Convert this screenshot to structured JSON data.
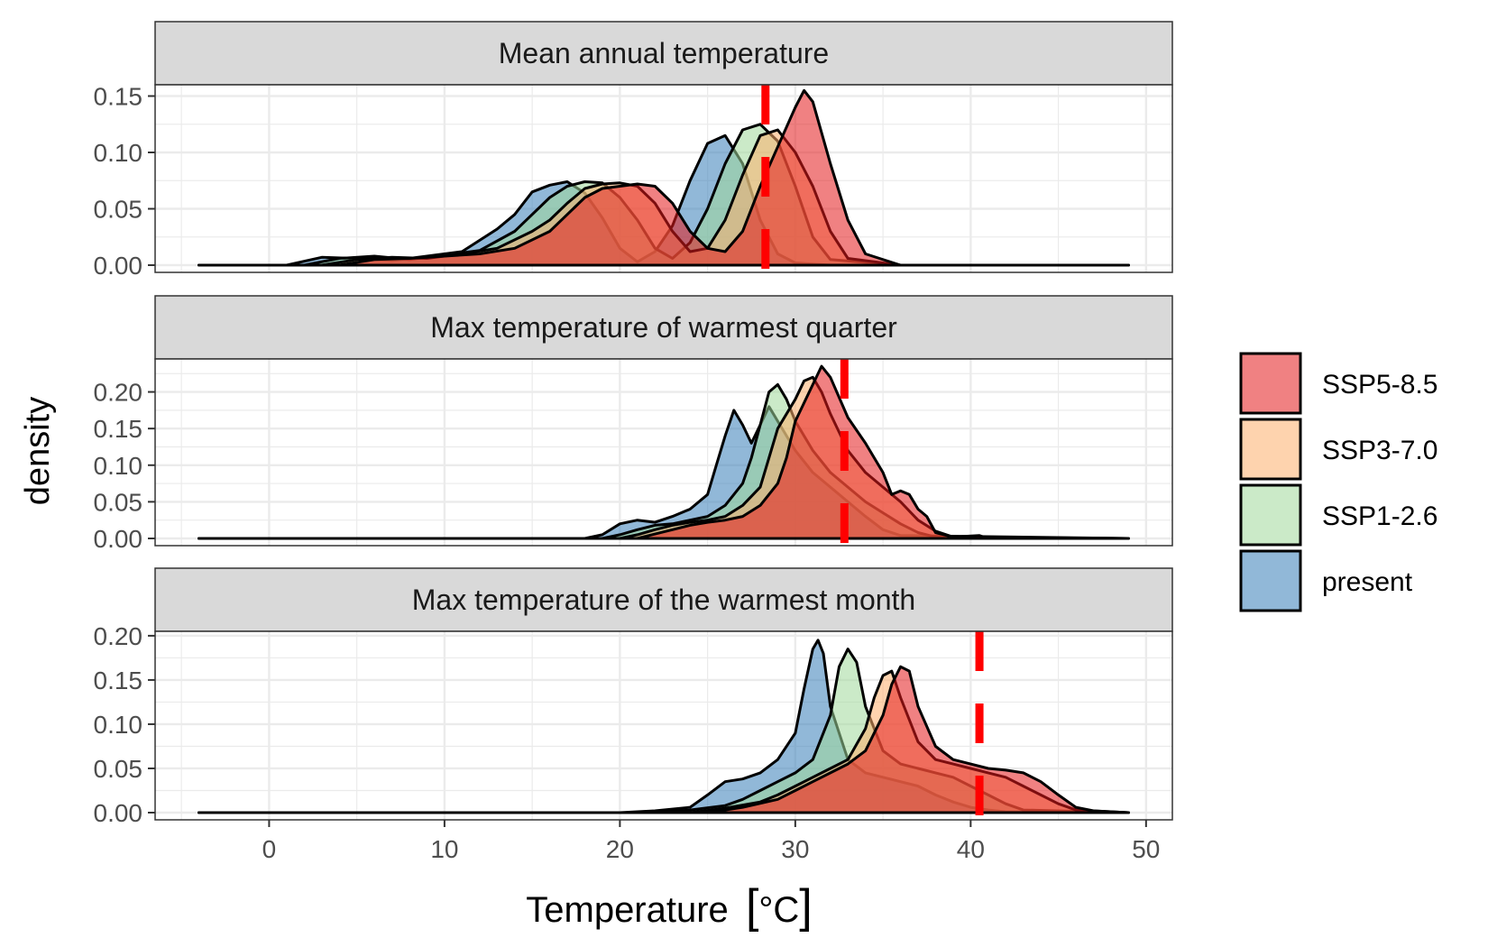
{
  "chart_data": {
    "type": "area",
    "subtype": "faceted density plot",
    "xlabel": "Temperature",
    "xunit": "°C",
    "ylabel": "density",
    "xlim": [
      -6.5,
      51.5
    ],
    "xticks": [
      0,
      10,
      20,
      30,
      40,
      50
    ],
    "grid": true,
    "legend_position": "right",
    "legend": [
      {
        "name": "SSP5-8.5",
        "color": "#E41A1C"
      },
      {
        "name": "SSP3-7.0",
        "color": "#FDAE6B"
      },
      {
        "name": "SSP1-2.6",
        "color": "#A1D99B"
      },
      {
        "name": "present",
        "color": "#377EB8"
      }
    ],
    "fill_opacity": 0.55,
    "threshold_line": {
      "style": "dashed",
      "color": "#FF0000"
    },
    "panels": [
      {
        "title": "Mean annual temperature",
        "ylim": [
          0,
          0.16
        ],
        "yticks": [
          "0.00",
          "0.05",
          "0.10",
          "0.15"
        ],
        "threshold": 28.3,
        "series": [
          {
            "name": "present",
            "x": [
              -4,
              1,
              3,
              5,
              7,
              9,
              11,
              13,
              14,
              15,
              16,
              17,
              18,
              19,
              20,
              21,
              22,
              23,
              24,
              25,
              26,
              27,
              28,
              29,
              30,
              32,
              36,
              49
            ],
            "y": [
              0,
              0,
              0.007,
              0.006,
              0.004,
              0.008,
              0.012,
              0.032,
              0.045,
              0.065,
              0.071,
              0.074,
              0.064,
              0.042,
              0.015,
              0.003,
              0.012,
              0.035,
              0.075,
              0.108,
              0.115,
              0.09,
              0.04,
              0.01,
              0.002,
              0,
              0,
              0
            ]
          },
          {
            "name": "SSP1-2.6",
            "x": [
              -4,
              2,
              4,
              6,
              8,
              10,
              12,
              14,
              15,
              16,
              17,
              18,
              19,
              20,
              21,
              22,
              23,
              24,
              25,
              26,
              27,
              28,
              29,
              30,
              31,
              32,
              36,
              49
            ],
            "y": [
              0,
              0,
              0.006,
              0.008,
              0.005,
              0.009,
              0.013,
              0.03,
              0.045,
              0.06,
              0.07,
              0.074,
              0.073,
              0.06,
              0.04,
              0.015,
              0.006,
              0.02,
              0.05,
              0.09,
              0.12,
              0.125,
              0.11,
              0.07,
              0.025,
              0.005,
              0,
              0
            ]
          },
          {
            "name": "SSP3-7.0",
            "x": [
              -4,
              3,
              5,
              7,
              9,
              11,
              13,
              15,
              16,
              17,
              18,
              19,
              20,
              21,
              22,
              23,
              24,
              25,
              26,
              27,
              28,
              29,
              30,
              31,
              32,
              33,
              36,
              49
            ],
            "y": [
              0,
              0,
              0.005,
              0.007,
              0.006,
              0.01,
              0.015,
              0.03,
              0.04,
              0.055,
              0.068,
              0.072,
              0.073,
              0.07,
              0.055,
              0.03,
              0.012,
              0.015,
              0.04,
              0.08,
              0.115,
              0.12,
              0.1,
              0.07,
              0.03,
              0.006,
              0,
              0
            ]
          },
          {
            "name": "SSP5-8.5",
            "x": [
              -4,
              4,
              6,
              8,
              10,
              12,
              14,
              16,
              17,
              18,
              19,
              20,
              21,
              22,
              23,
              24,
              25,
              26,
              27,
              28,
              29,
              30,
              30.5,
              31,
              32,
              33,
              34,
              36,
              49
            ],
            "y": [
              0,
              0,
              0.005,
              0.006,
              0.008,
              0.01,
              0.015,
              0.03,
              0.045,
              0.06,
              0.068,
              0.07,
              0.072,
              0.07,
              0.055,
              0.03,
              0.015,
              0.012,
              0.03,
              0.07,
              0.105,
              0.14,
              0.155,
              0.145,
              0.09,
              0.04,
              0.01,
              0,
              0
            ]
          }
        ]
      },
      {
        "title": "Max temperature of warmest quarter",
        "ylim": [
          0,
          0.245
        ],
        "yticks": [
          "0.00",
          "0.05",
          "0.10",
          "0.15",
          "0.20"
        ],
        "threshold": 32.8,
        "series": [
          {
            "name": "present",
            "x": [
              -4,
              18,
              19,
              20,
              21,
              22,
              23,
              24,
              25,
              25.5,
              26,
              26.5,
              27,
              27.5,
              28,
              28.5,
              29,
              30,
              31,
              32,
              33,
              34,
              35,
              36,
              49
            ],
            "y": [
              0,
              0,
              0.005,
              0.02,
              0.025,
              0.022,
              0.03,
              0.04,
              0.06,
              0.1,
              0.14,
              0.175,
              0.155,
              0.13,
              0.155,
              0.18,
              0.16,
              0.12,
              0.09,
              0.07,
              0.05,
              0.03,
              0.012,
              0.004,
              0
            ]
          },
          {
            "name": "SSP1-2.6",
            "x": [
              -4,
              19,
              20,
              21,
              22,
              23,
              24,
              25,
              26,
              27,
              27.5,
              28,
              28.5,
              29,
              29.5,
              30,
              31,
              32,
              33,
              34,
              35,
              36,
              37,
              38,
              49
            ],
            "y": [
              0,
              0,
              0.005,
              0.012,
              0.018,
              0.02,
              0.025,
              0.03,
              0.045,
              0.075,
              0.11,
              0.155,
              0.2,
              0.21,
              0.19,
              0.16,
              0.12,
              0.09,
              0.07,
              0.05,
              0.035,
              0.02,
              0.008,
              0.002,
              0
            ]
          },
          {
            "name": "SSP3-7.0",
            "x": [
              -4,
              20,
              21,
              22,
              23,
              24,
              25,
              26,
              27,
              28,
              28.5,
              29,
              30,
              30.5,
              31,
              31.5,
              32,
              33,
              34,
              35,
              36,
              37,
              38,
              39,
              49
            ],
            "y": [
              0,
              0,
              0.005,
              0.012,
              0.018,
              0.022,
              0.025,
              0.03,
              0.045,
              0.07,
              0.11,
              0.15,
              0.19,
              0.215,
              0.22,
              0.2,
              0.17,
              0.12,
              0.09,
              0.07,
              0.05,
              0.025,
              0.01,
              0.002,
              0
            ]
          },
          {
            "name": "SSP5-8.5",
            "x": [
              -4,
              21,
              22,
              23,
              24,
              25,
              26,
              27,
              28,
              29,
              29.5,
              30,
              31,
              31.5,
              32,
              33,
              34,
              35,
              35.5,
              36,
              36.5,
              37,
              37.5,
              38,
              39,
              40.5,
              41,
              49
            ],
            "y": [
              0,
              0,
              0.006,
              0.012,
              0.018,
              0.022,
              0.025,
              0.03,
              0.045,
              0.075,
              0.11,
              0.16,
              0.21,
              0.235,
              0.22,
              0.165,
              0.13,
              0.09,
              0.06,
              0.065,
              0.06,
              0.04,
              0.03,
              0.008,
              0.002,
              0.004,
              0,
              0
            ]
          }
        ]
      },
      {
        "title": "Max temperature of the warmest month",
        "ylim": [
          0,
          0.205
        ],
        "yticks": [
          "0.00",
          "0.05",
          "0.10",
          "0.15",
          "0.20"
        ],
        "threshold": 40.5,
        "series": [
          {
            "name": "present",
            "x": [
              -4,
              20,
              22,
              24,
              25,
              26,
              27,
              28,
              29,
              30,
              30.5,
              31,
              31.3,
              31.6,
              32,
              33,
              34,
              35,
              36,
              37,
              38,
              39,
              40,
              41,
              42,
              49
            ],
            "y": [
              0,
              0,
              0.002,
              0.006,
              0.02,
              0.035,
              0.038,
              0.045,
              0.06,
              0.09,
              0.14,
              0.185,
              0.195,
              0.18,
              0.12,
              0.06,
              0.045,
              0.04,
              0.035,
              0.03,
              0.02,
              0.012,
              0.006,
              0.003,
              0.001,
              0
            ]
          },
          {
            "name": "SSP1-2.6",
            "x": [
              -4,
              22,
              24,
              26,
              27,
              28,
              29,
              30,
              31,
              32,
              32.5,
              33,
              33.5,
              34,
              35,
              36,
              37,
              38,
              39,
              40,
              41,
              42,
              43,
              49
            ],
            "y": [
              0,
              0,
              0.003,
              0.008,
              0.015,
              0.025,
              0.035,
              0.045,
              0.06,
              0.11,
              0.165,
              0.185,
              0.17,
              0.12,
              0.07,
              0.055,
              0.05,
              0.045,
              0.04,
              0.03,
              0.02,
              0.01,
              0.003,
              0
            ]
          },
          {
            "name": "SSP3-7.0",
            "x": [
              -4,
              24,
              26,
              28,
              29,
              30,
              31,
              32,
              33,
              34,
              34.5,
              35,
              35.5,
              36,
              37,
              38,
              39,
              40,
              41,
              42,
              43,
              44,
              45,
              46,
              49
            ],
            "y": [
              0,
              0,
              0.005,
              0.012,
              0.02,
              0.03,
              0.04,
              0.05,
              0.06,
              0.095,
              0.13,
              0.155,
              0.16,
              0.13,
              0.08,
              0.06,
              0.055,
              0.05,
              0.045,
              0.04,
              0.03,
              0.02,
              0.01,
              0.003,
              0
            ]
          },
          {
            "name": "SSP5-8.5",
            "x": [
              -4,
              25,
              27,
              29,
              30,
              31,
              32,
              33,
              34,
              35,
              35.5,
              36,
              36.5,
              37,
              38,
              39,
              40,
              41,
              42,
              43,
              44,
              45,
              46,
              47,
              48,
              49
            ],
            "y": [
              0,
              0,
              0.006,
              0.015,
              0.025,
              0.035,
              0.045,
              0.055,
              0.07,
              0.11,
              0.145,
              0.165,
              0.16,
              0.12,
              0.075,
              0.06,
              0.055,
              0.05,
              0.048,
              0.045,
              0.035,
              0.02,
              0.006,
              0.002,
              0.001,
              0
            ]
          }
        ]
      }
    ]
  }
}
